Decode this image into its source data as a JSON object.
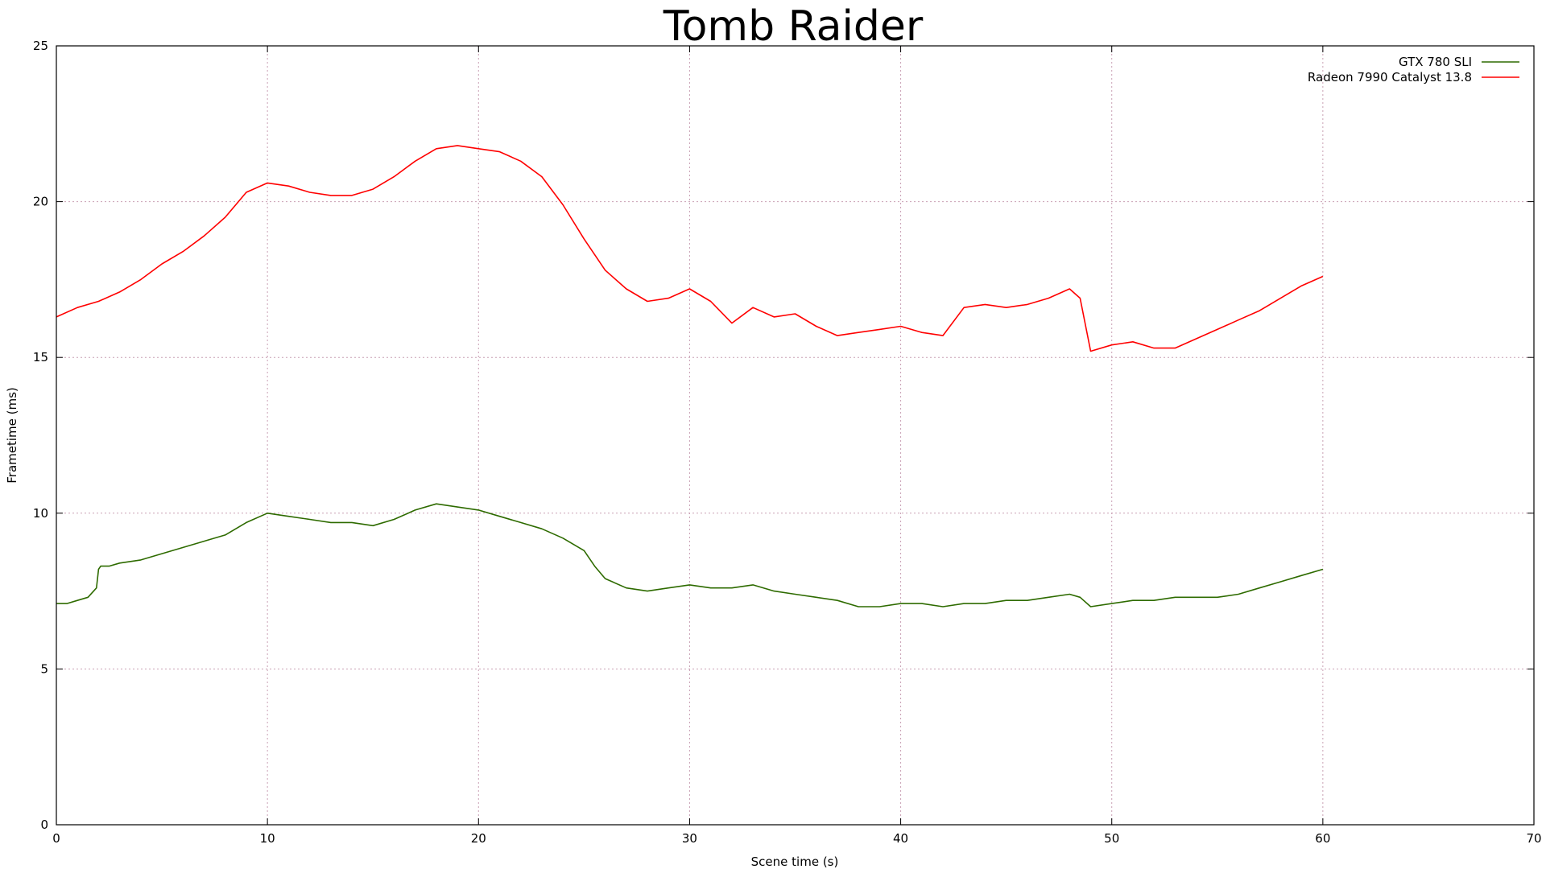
{
  "chart_data": {
    "type": "line",
    "title": "Tomb Raider",
    "xlabel": "Scene time (s)",
    "ylabel": "Frametime (ms)",
    "xlim": [
      0,
      70
    ],
    "ylim": [
      0,
      25
    ],
    "xticks": [
      0,
      10,
      20,
      30,
      40,
      50,
      60,
      70
    ],
    "yticks": [
      0,
      5,
      10,
      15,
      20,
      25
    ],
    "grid": true,
    "legend_position": "top-right",
    "series": [
      {
        "name": "GTX 780 SLI",
        "color": "#2e6b00",
        "x": [
          0,
          0.5,
          1,
          1.5,
          1.9,
          2.0,
          2.1,
          2.5,
          3,
          4,
          5,
          6,
          7,
          8,
          9,
          10,
          11,
          12,
          13,
          14,
          15,
          16,
          17,
          18,
          19,
          20,
          21,
          22,
          23,
          24,
          25,
          25.5,
          26,
          27,
          28,
          29,
          30,
          31,
          32,
          33,
          34,
          35,
          36,
          37,
          38,
          39,
          40,
          41,
          42,
          43,
          44,
          45,
          46,
          47,
          48,
          48.5,
          49,
          50,
          51,
          52,
          53,
          54,
          55,
          56,
          57,
          58,
          59,
          60
        ],
        "y": [
          7.1,
          7.1,
          7.2,
          7.3,
          7.6,
          8.2,
          8.3,
          8.3,
          8.4,
          8.5,
          8.7,
          8.9,
          9.1,
          9.3,
          9.7,
          10.0,
          9.9,
          9.8,
          9.7,
          9.7,
          9.6,
          9.8,
          10.1,
          10.3,
          10.2,
          10.1,
          9.9,
          9.7,
          9.5,
          9.2,
          8.8,
          8.3,
          7.9,
          7.6,
          7.5,
          7.6,
          7.7,
          7.6,
          7.6,
          7.7,
          7.5,
          7.4,
          7.3,
          7.2,
          7.0,
          7.0,
          7.1,
          7.1,
          7.0,
          7.1,
          7.1,
          7.2,
          7.2,
          7.3,
          7.4,
          7.3,
          7.0,
          7.1,
          7.2,
          7.2,
          7.3,
          7.3,
          7.3,
          7.4,
          7.6,
          7.8,
          8.0,
          8.2
        ]
      },
      {
        "name": "Radeon 7990 Catalyst 13.8",
        "color": "#ff0000",
        "x": [
          0,
          1,
          2,
          3,
          4,
          5,
          6,
          7,
          8,
          9,
          10,
          11,
          12,
          13,
          14,
          15,
          16,
          17,
          18,
          19,
          20,
          21,
          22,
          23,
          24,
          25,
          26,
          27,
          28,
          29,
          30,
          31,
          32,
          33,
          34,
          35,
          36,
          37,
          38,
          39,
          40,
          41,
          42,
          43,
          44,
          45,
          46,
          47,
          48,
          48.5,
          49,
          50,
          51,
          52,
          53,
          54,
          55,
          56,
          57,
          58,
          59,
          60
        ],
        "y": [
          16.3,
          16.6,
          16.8,
          17.1,
          17.5,
          18.0,
          18.4,
          18.9,
          19.5,
          20.3,
          20.6,
          20.5,
          20.3,
          20.2,
          20.2,
          20.4,
          20.8,
          21.3,
          21.7,
          21.8,
          21.7,
          21.6,
          21.3,
          20.8,
          19.9,
          18.8,
          17.8,
          17.2,
          16.8,
          16.9,
          17.2,
          16.8,
          16.1,
          16.6,
          16.3,
          16.4,
          16.0,
          15.7,
          15.8,
          15.9,
          16.0,
          15.8,
          15.7,
          16.6,
          16.7,
          16.6,
          16.7,
          16.9,
          17.2,
          16.9,
          15.2,
          15.4,
          15.5,
          15.3,
          15.3,
          15.6,
          15.9,
          16.2,
          16.5,
          16.9,
          17.3,
          17.6
        ]
      }
    ]
  }
}
